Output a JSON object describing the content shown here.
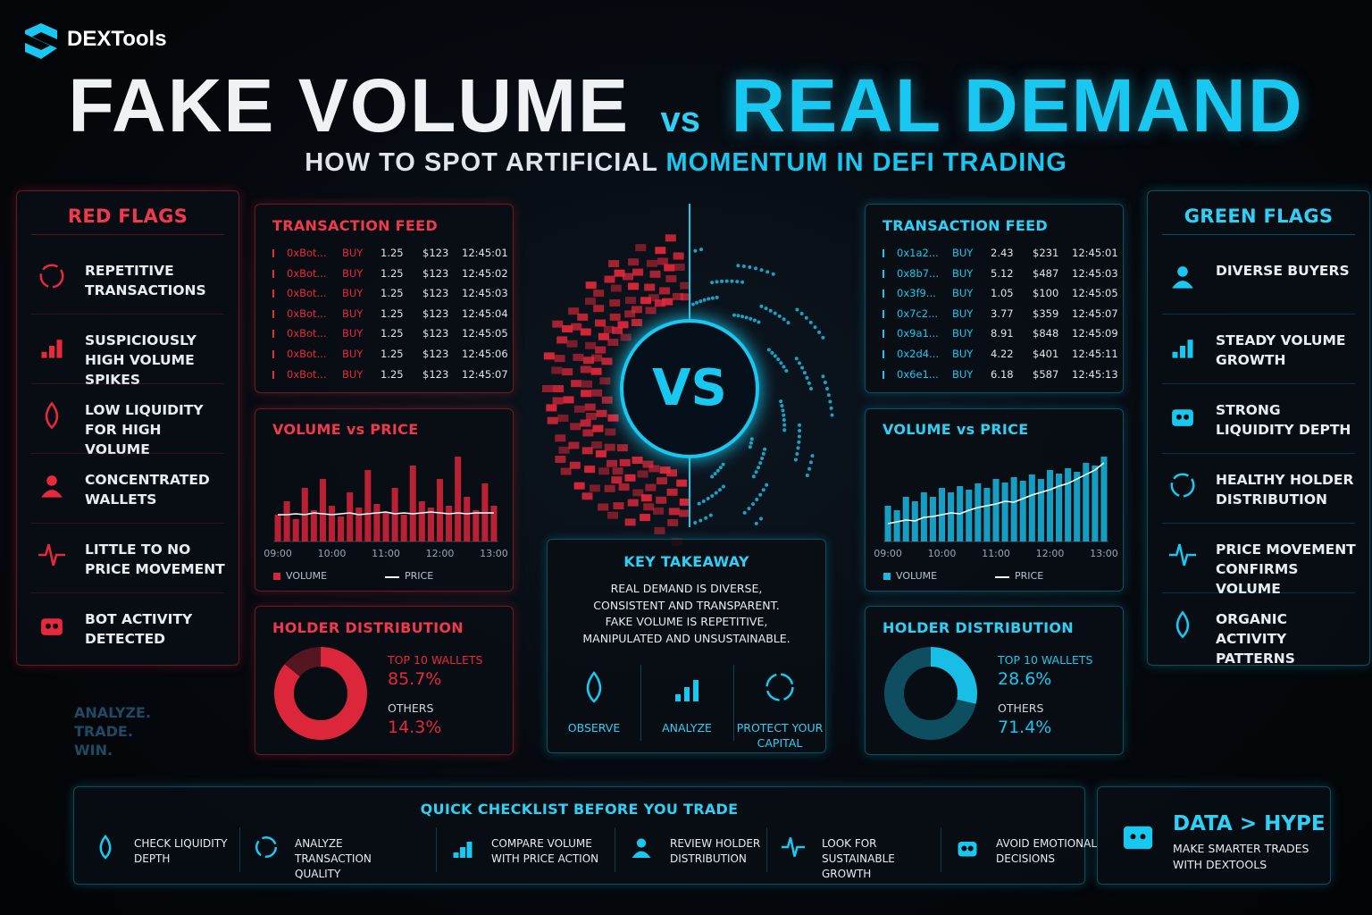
{
  "header": {
    "brand": "DEXTools",
    "title_fake": "FAKE VOLUME",
    "title_vs": "vs",
    "title_real": "REAL DEMAND",
    "subtitle_a": "HOW TO SPOT ARTIFICIAL",
    "subtitle_b": "MOMENTUM IN DEFI TRADING"
  },
  "red_flags": {
    "title": "RED FLAGS",
    "items": [
      "REPETITIVE TRANSACTIONS",
      "SUSPICIOUSLY HIGH VOLUME SPIKES",
      "LOW LIQUIDITY FOR HIGH VOLUME",
      "CONCENTRATED WALLETS",
      "LITTLE TO NO PRICE MOVEMENT",
      "BOT ACTIVITY DETECTED"
    ]
  },
  "green_flags": {
    "title": "GREEN FLAGS",
    "items": [
      "DIVERSE BUYERS",
      "STEADY VOLUME GROWTH",
      "STRONG LIQUIDITY DEPTH",
      "HEALTHY HOLDER DISTRIBUTION",
      "PRICE MOVEMENT CONFIRMS VOLUME",
      "ORGANIC ACTIVITY PATTERNS"
    ]
  },
  "fake": {
    "feed": {
      "title": "TRANSACTION FEED",
      "rows": [
        [
          "0xBot...",
          "BUY",
          "1.25",
          "$123",
          "12:45:01"
        ],
        [
          "0xBot...",
          "BUY",
          "1.25",
          "$123",
          "12:45:02"
        ],
        [
          "0xBot...",
          "BUY",
          "1.25",
          "$123",
          "12:45:03"
        ],
        [
          "0xBot...",
          "BUY",
          "1.25",
          "$123",
          "12:45:04"
        ],
        [
          "0xBot...",
          "BUY",
          "1.25",
          "$123",
          "12:45:05"
        ],
        [
          "0xBot...",
          "BUY",
          "1.25",
          "$123",
          "12:45:06"
        ],
        [
          "0xBot...",
          "BUY",
          "1.25",
          "$123",
          "12:45:07"
        ]
      ]
    },
    "chart": {
      "type": "bar",
      "title": "VOLUME vs PRICE",
      "ylim": [
        0,
        100
      ],
      "categories": [
        "09:00",
        null,
        null,
        null,
        null,
        null,
        "10:00",
        null,
        null,
        null,
        null,
        null,
        "11:00",
        null,
        null,
        null,
        null,
        null,
        "12:00",
        null,
        null,
        null,
        null,
        null,
        "13:00"
      ],
      "series": [
        {
          "name": "VOLUME",
          "color": "#d8243a",
          "values": [
            30,
            45,
            25,
            60,
            35,
            70,
            40,
            28,
            55,
            38,
            80,
            42,
            33,
            60,
            30,
            85,
            45,
            38,
            70,
            40,
            95,
            50,
            35,
            65,
            40
          ]
        },
        {
          "name": "PRICE",
          "color": "#ffffff",
          "values": [
            30,
            30,
            31,
            30,
            32,
            31,
            30,
            31,
            32,
            30,
            31,
            32,
            33,
            31,
            32,
            31,
            32,
            33,
            32,
            31,
            32,
            31,
            32,
            32,
            32
          ]
        }
      ]
    },
    "holders": {
      "title": "HOLDER DISTRIBUTION",
      "type": "pie",
      "items": [
        {
          "label": "TOP 10 WALLETS",
          "value": 85.7,
          "value_label": "85.7%"
        },
        {
          "label": "OTHERS",
          "value": 14.3,
          "value_label": "14.3%"
        }
      ]
    }
  },
  "real": {
    "feed": {
      "title": "TRANSACTION FEED",
      "rows": [
        [
          "0x1a2...",
          "BUY",
          "2.43",
          "$231",
          "12:45:01"
        ],
        [
          "0x8b7...",
          "BUY",
          "5.12",
          "$487",
          "12:45:03"
        ],
        [
          "0x3f9...",
          "BUY",
          "1.05",
          "$100",
          "12:45:05"
        ],
        [
          "0x7c2...",
          "BUY",
          "3.77",
          "$359",
          "12:45:07"
        ],
        [
          "0x9a1...",
          "BUY",
          "8.91",
          "$848",
          "12:45:09"
        ],
        [
          "0x2d4...",
          "BUY",
          "4.22",
          "$401",
          "12:45:11"
        ],
        [
          "0x6e1...",
          "BUY",
          "6.18",
          "$587",
          "12:45:13"
        ]
      ]
    },
    "chart": {
      "type": "bar",
      "title": "VOLUME vs PRICE",
      "ylim": [
        0,
        100
      ],
      "categories": [
        "09:00",
        null,
        null,
        null,
        null,
        null,
        "10:00",
        null,
        null,
        null,
        null,
        null,
        "11:00",
        null,
        null,
        null,
        null,
        null,
        "12:00",
        null,
        null,
        null,
        null,
        null,
        "13:00"
      ],
      "series": [
        {
          "name": "VOLUME",
          "color": "#19b8e0",
          "values": [
            40,
            35,
            50,
            45,
            55,
            50,
            60,
            55,
            62,
            58,
            65,
            60,
            70,
            66,
            72,
            68,
            75,
            70,
            80,
            76,
            82,
            78,
            88,
            85,
            95
          ]
        },
        {
          "name": "PRICE",
          "color": "#ffffff",
          "values": [
            20,
            22,
            24,
            23,
            27,
            28,
            30,
            32,
            31,
            35,
            38,
            40,
            42,
            45,
            44,
            48,
            52,
            55,
            58,
            62,
            65,
            70,
            75,
            80,
            88
          ]
        }
      ]
    },
    "holders": {
      "title": "HOLDER DISTRIBUTION",
      "type": "pie",
      "items": [
        {
          "label": "TOP 10 WALLETS",
          "value": 28.6,
          "value_label": "28.6%"
        },
        {
          "label": "OTHERS",
          "value": 71.4,
          "value_label": "71.4%"
        }
      ]
    }
  },
  "center": {
    "vs": "VS",
    "takeaway": {
      "title": "KEY TAKEAWAY",
      "lines": [
        "REAL DEMAND IS DIVERSE,",
        "CONSISTENT AND TRANSPARENT.",
        "FAKE VOLUME IS REPETITIVE,",
        "MANIPULATED AND UNSUSTAINABLE."
      ],
      "steps": [
        "OBSERVE",
        "ANALYZE",
        "PROTECT YOUR CAPITAL"
      ]
    }
  },
  "side_text": [
    "ANALYZE.",
    "TRADE.",
    "WIN."
  ],
  "checklist": {
    "title": "QUICK CHECKLIST BEFORE YOU TRADE",
    "items": [
      "CHECK LIQUIDITY DEPTH",
      "ANALYZE TRANSACTION QUALITY",
      "COMPARE VOLUME WITH PRICE ACTION",
      "REVIEW HOLDER DISTRIBUTION",
      "LOOK FOR SUSTAINABLE GROWTH",
      "AVOID EMOTIONAL DECISIONS"
    ]
  },
  "cta": {
    "title": "DATA > HYPE",
    "text": "MAKE SMARTER TRADES WITH DEXTOOLS"
  }
}
